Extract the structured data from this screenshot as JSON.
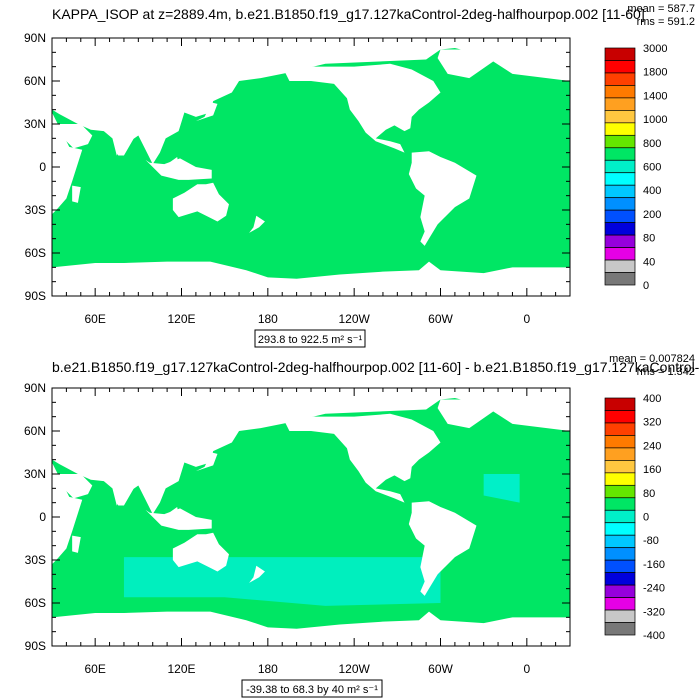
{
  "chart_data": [
    {
      "type": "heatmap",
      "title": "KAPPA_ISOP at z=2889.4m, b.e21.B1850.f19_g17.127kaControl-2deg-halfhourpop.002 [11-60]",
      "stats": [
        "mean = 587.7",
        "rms = 591.2"
      ],
      "x_tick_labels": [
        "60E",
        "120E",
        "180",
        "120W",
        "60W",
        "0"
      ],
      "y_tick_labels": [
        "90N",
        "60N",
        "30N",
        "0",
        "30S",
        "60S",
        "90S"
      ],
      "range_label": "293.8 to 922.5 m² s⁻¹",
      "colorbar_labels": [
        "3000",
        "1800",
        "1400",
        "1000",
        "800",
        "600",
        "400",
        "200",
        "80",
        "40",
        "0"
      ],
      "colorbar_colors": [
        "#c80000",
        "#ff0000",
        "#ff4000",
        "#ff7a00",
        "#ffa020",
        "#ffc840",
        "#ffff00",
        "#64e600",
        "#00e664",
        "#00f0c8",
        "#00ffff",
        "#00c8ff",
        "#0090ff",
        "#0050ff",
        "#0000dc",
        "#9600dc",
        "#e600e6",
        "#c8c8c8",
        "#787878"
      ],
      "dominant_value_color": "#00e664",
      "land_color": "#ffffff"
    },
    {
      "type": "heatmap",
      "title": "b.e21.B1850.f19_g17.127kaControl-2deg-halfhourpop.002 [11-60] - b.e21.B1850.f19_g17.127kaControl-2deg.0",
      "stats": [
        "mean = 0.007824",
        "rms = 1.342"
      ],
      "x_tick_labels": [
        "60E",
        "120E",
        "180",
        "120W",
        "60W",
        "0"
      ],
      "y_tick_labels": [
        "90N",
        "60N",
        "30N",
        "0",
        "30S",
        "60S",
        "90S"
      ],
      "range_label": "-39.38 to 68.3 by 40 m² s⁻¹",
      "colorbar_labels": [
        "400",
        "320",
        "240",
        "160",
        "80",
        "0",
        "-80",
        "-160",
        "-240",
        "-320",
        "-400"
      ],
      "colorbar_colors": [
        "#c80000",
        "#ff0000",
        "#ff4000",
        "#ff7a00",
        "#ffa020",
        "#ffc840",
        "#ffff00",
        "#64e600",
        "#00e664",
        "#00f0c8",
        "#00ffff",
        "#00c8ff",
        "#0090ff",
        "#0050ff",
        "#0000dc",
        "#9600dc",
        "#e600e6",
        "#c8c8c8",
        "#787878"
      ],
      "dominant_value_color": "#00e664",
      "secondary_value_color": "#00f0c8",
      "land_color": "#ffffff"
    }
  ]
}
